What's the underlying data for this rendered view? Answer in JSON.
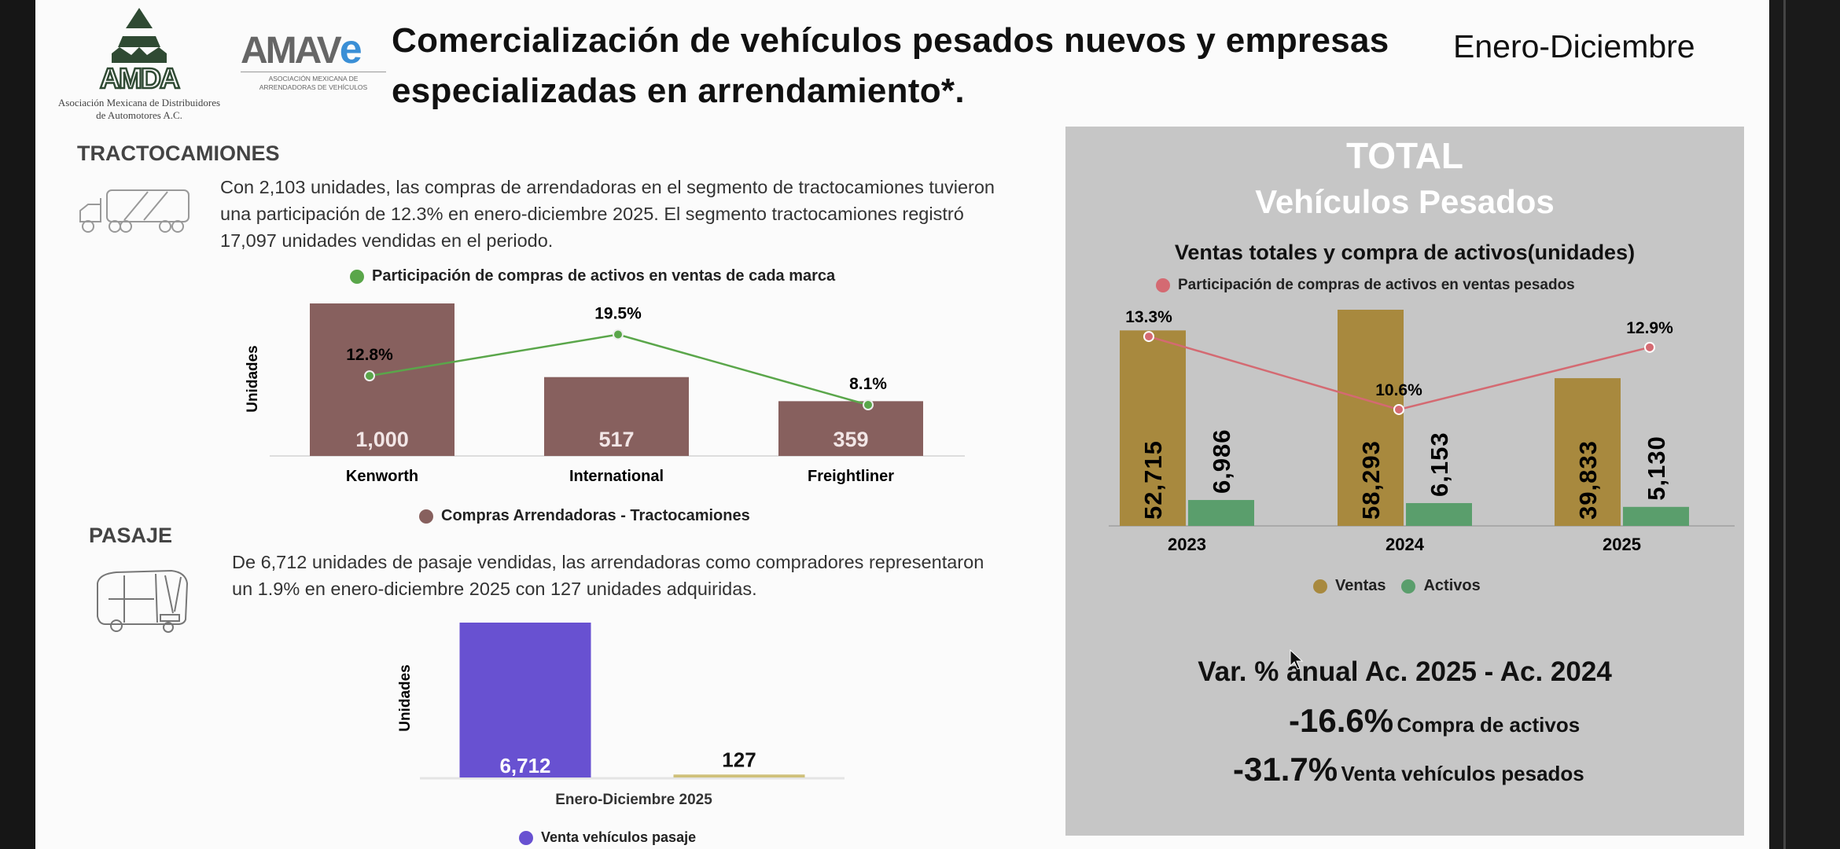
{
  "header": {
    "amda_logo": {
      "text": "AMDA",
      "caption": "Asociación Mexicana de Distribuidores de Automotores A.C."
    },
    "amave_logo": {
      "text": "AMAVe",
      "caption": "ASOCIACIÓN MEXICANA DE ARRENDADORAS DE VEHÍCULOS"
    },
    "title_line1": "Comercialización de vehículos pesados nuevos y empresas",
    "title_line2": "especializadas en arrendamiento*.",
    "period": "Enero-Diciembre"
  },
  "tractocamiones": {
    "heading": "TRACTOCAMIONES",
    "icon": "truck-icon",
    "text_lines": [
      "Con 2,103 unidades, las compras de arrendadoras en el segmento de tractocamiones tuvieron",
      "una participación de 12.3% en enero-diciembre 2025. El segmento tractocamiones registró",
      "17,097 unidades vendidas en el periodo."
    ]
  },
  "pasaje": {
    "heading": "PASAJE",
    "icon": "bus-icon",
    "text_lines": [
      "De 6,712 unidades de pasaje vendidas, las arrendadoras como compradores representaron",
      "un 1.9% en enero-diciembre 2025 con 127 unidades adquiridas."
    ]
  },
  "total_panel": {
    "title1": "TOTAL",
    "title2": "Vehículos Pesados",
    "var_heading": "Var. % anual Ac. 2025 - Ac. 2024",
    "var_items": [
      {
        "value": "-16.6%",
        "label": "Compra de activos"
      },
      {
        "value": "-31.7%",
        "label": "Venta vehículos pesados"
      }
    ]
  },
  "chart_data": [
    {
      "type": "bar",
      "ylabel": "Unidades",
      "categories": [
        "Kenworth",
        "International",
        "Freightliner"
      ],
      "ylim": [
        0,
        1000
      ],
      "series": [
        {
          "name": "Compras Arrendadoras - Tractocamiones",
          "values": [
            1000,
            517,
            359
          ],
          "labels": [
            "1,000",
            "517",
            "359"
          ],
          "color": "#87605e"
        },
        {
          "name": "Participación de compras de activos en ventas de cada marca",
          "type": "line",
          "values": [
            12.8,
            19.5,
            8.1
          ],
          "labels": [
            "12.8%",
            "19.5%",
            "8.1%"
          ],
          "color": "#5aa64a"
        }
      ]
    },
    {
      "type": "bar",
      "ylabel": "Unidades",
      "categories": [
        "Enero-Diciembre 2025"
      ],
      "ylim": [
        0,
        6712
      ],
      "bars": [
        {
          "value": 6712,
          "label": "6,712",
          "color": "#6851d1"
        },
        {
          "value": 127,
          "label": "127",
          "color": "#cfc07a"
        }
      ],
      "legend": [
        {
          "name": "Venta vehículos pasaje",
          "color": "#6851d1"
        }
      ]
    },
    {
      "type": "bar",
      "title": "Ventas totales y compra de activos(unidades)",
      "categories": [
        "2023",
        "2024",
        "2025"
      ],
      "ylim": [
        0,
        58293
      ],
      "series": [
        {
          "name": "Ventas",
          "values": [
            52715,
            58293,
            39833
          ],
          "labels": [
            "52,715",
            "58,293",
            "39,833"
          ],
          "color": "#a8893e"
        },
        {
          "name": "Activos",
          "values": [
            6986,
            6153,
            5130
          ],
          "labels": [
            "6,986",
            "6,153",
            "5,130"
          ],
          "color": "#5a9e6c"
        },
        {
          "name": "Participación de compras de activos en ventas pesados",
          "type": "line",
          "values": [
            13.3,
            10.6,
            12.9
          ],
          "labels": [
            "13.3%",
            "10.6%",
            "12.9%"
          ],
          "color": "#d46a72"
        }
      ],
      "legend": "bottom"
    }
  ]
}
